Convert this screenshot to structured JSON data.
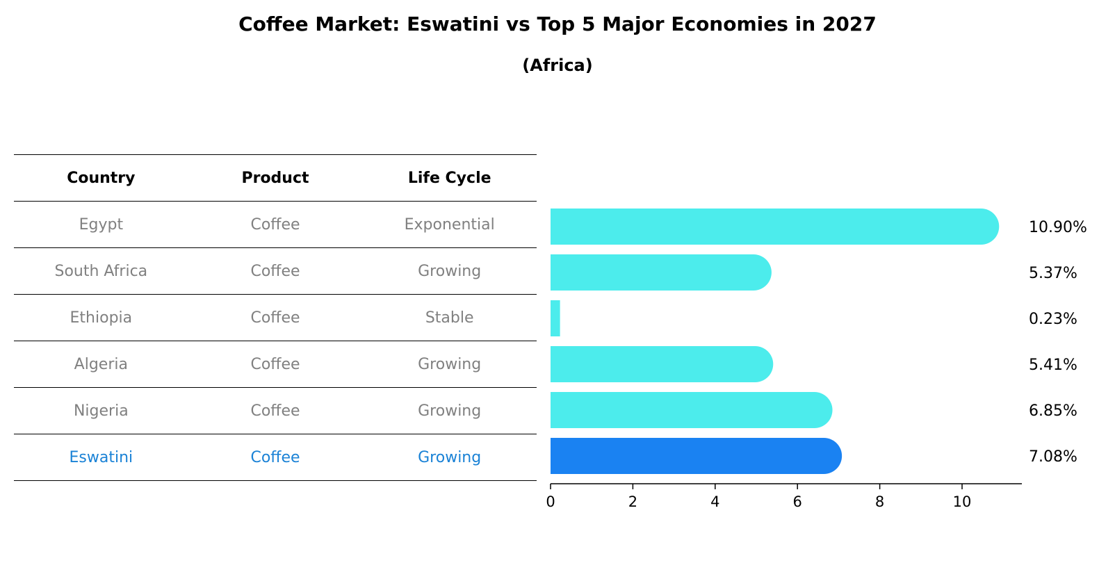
{
  "title": "Coffee Market: Eswatini vs Top 5 Major Economies in 2027",
  "subtitle": "(Africa)",
  "table": {
    "headers": [
      "Country",
      "Product",
      "Life Cycle"
    ],
    "rows": [
      {
        "country": "Egypt",
        "product": "Coffee",
        "life_cycle": "Exponential"
      },
      {
        "country": "South Africa",
        "product": "Coffee",
        "life_cycle": "Growing"
      },
      {
        "country": "Ethiopia",
        "product": "Coffee",
        "life_cycle": "Stable"
      },
      {
        "country": "Algeria",
        "product": "Coffee",
        "life_cycle": "Growing"
      },
      {
        "country": "Nigeria",
        "product": "Coffee",
        "life_cycle": "Growing"
      },
      {
        "country": "Eswatini",
        "product": "Coffee",
        "life_cycle": "Growing"
      }
    ]
  },
  "chart_data": {
    "type": "bar",
    "orientation": "horizontal",
    "categories": [
      "Egypt",
      "South Africa",
      "Ethiopia",
      "Algeria",
      "Nigeria",
      "Eswatini"
    ],
    "values": [
      10.9,
      5.37,
      0.23,
      5.41,
      6.85,
      7.08
    ],
    "value_labels": [
      "10.90%",
      "5.37%",
      "0.23%",
      "5.41%",
      "6.85%",
      "7.08%"
    ],
    "highlight_index": 5,
    "xlim": [
      0,
      11.5
    ],
    "xticks": [
      0,
      2,
      4,
      6,
      8,
      10
    ],
    "grid": false,
    "colors": {
      "bar": "#4cecec",
      "highlight": "#1a82f2",
      "text": "#000000"
    }
  }
}
